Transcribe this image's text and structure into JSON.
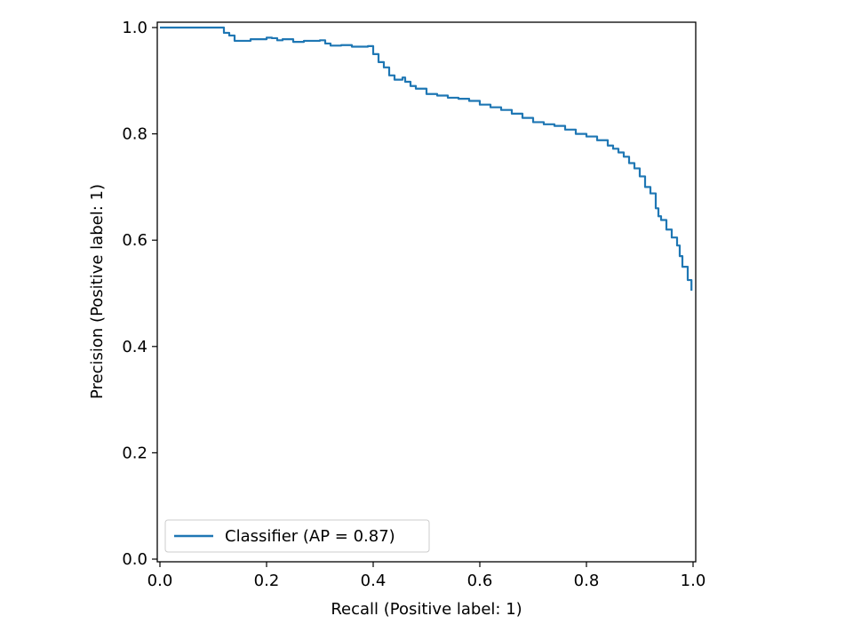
{
  "chart_data": {
    "type": "line",
    "title": "",
    "xlabel": "Recall (Positive label: 1)",
    "ylabel": "Precision (Positive label: 1)",
    "xlim": [
      -0.005,
      1.005
    ],
    "ylim": [
      -0.005,
      1.01
    ],
    "grid": false,
    "legend_position": "lower-left",
    "x_ticks": [
      {
        "value": 0.0,
        "label": "0.0"
      },
      {
        "value": 0.2,
        "label": "0.2"
      },
      {
        "value": 0.4,
        "label": "0.4"
      },
      {
        "value": 0.6,
        "label": "0.6"
      },
      {
        "value": 0.8,
        "label": "0.8"
      },
      {
        "value": 1.0,
        "label": "1.0"
      }
    ],
    "y_ticks": [
      {
        "value": 0.0,
        "label": "0.0"
      },
      {
        "value": 0.2,
        "label": "0.2"
      },
      {
        "value": 0.4,
        "label": "0.4"
      },
      {
        "value": 0.6,
        "label": "0.6"
      },
      {
        "value": 0.8,
        "label": "0.8"
      },
      {
        "value": 1.0,
        "label": "1.0"
      }
    ],
    "series": [
      {
        "name": "Classifier (AP = 0.87)",
        "color": "#1f77b4",
        "drawstyle": "steps-post",
        "points": [
          [
            0.0,
            1.0
          ],
          [
            0.04,
            1.0
          ],
          [
            0.08,
            1.0
          ],
          [
            0.115,
            1.0
          ],
          [
            0.12,
            0.99
          ],
          [
            0.13,
            0.985
          ],
          [
            0.14,
            0.975
          ],
          [
            0.17,
            0.978
          ],
          [
            0.2,
            0.981
          ],
          [
            0.21,
            0.98
          ],
          [
            0.22,
            0.976
          ],
          [
            0.23,
            0.978
          ],
          [
            0.25,
            0.973
          ],
          [
            0.27,
            0.975
          ],
          [
            0.3,
            0.976
          ],
          [
            0.31,
            0.97
          ],
          [
            0.32,
            0.966
          ],
          [
            0.34,
            0.967
          ],
          [
            0.36,
            0.964
          ],
          [
            0.39,
            0.965
          ],
          [
            0.4,
            0.95
          ],
          [
            0.41,
            0.935
          ],
          [
            0.42,
            0.925
          ],
          [
            0.43,
            0.91
          ],
          [
            0.44,
            0.902
          ],
          [
            0.455,
            0.906
          ],
          [
            0.46,
            0.898
          ],
          [
            0.47,
            0.89
          ],
          [
            0.48,
            0.885
          ],
          [
            0.5,
            0.875
          ],
          [
            0.52,
            0.872
          ],
          [
            0.54,
            0.868
          ],
          [
            0.56,
            0.866
          ],
          [
            0.58,
            0.862
          ],
          [
            0.6,
            0.855
          ],
          [
            0.62,
            0.85
          ],
          [
            0.64,
            0.845
          ],
          [
            0.66,
            0.838
          ],
          [
            0.68,
            0.83
          ],
          [
            0.7,
            0.822
          ],
          [
            0.72,
            0.818
          ],
          [
            0.74,
            0.815
          ],
          [
            0.76,
            0.808
          ],
          [
            0.78,
            0.8
          ],
          [
            0.8,
            0.795
          ],
          [
            0.82,
            0.788
          ],
          [
            0.84,
            0.778
          ],
          [
            0.85,
            0.772
          ],
          [
            0.86,
            0.765
          ],
          [
            0.87,
            0.757
          ],
          [
            0.88,
            0.745
          ],
          [
            0.89,
            0.735
          ],
          [
            0.9,
            0.72
          ],
          [
            0.91,
            0.7
          ],
          [
            0.92,
            0.688
          ],
          [
            0.93,
            0.66
          ],
          [
            0.935,
            0.645
          ],
          [
            0.94,
            0.638
          ],
          [
            0.95,
            0.62
          ],
          [
            0.96,
            0.605
          ],
          [
            0.97,
            0.59
          ],
          [
            0.975,
            0.57
          ],
          [
            0.98,
            0.55
          ],
          [
            0.99,
            0.525
          ],
          [
            0.997,
            0.505
          ]
        ]
      }
    ]
  }
}
